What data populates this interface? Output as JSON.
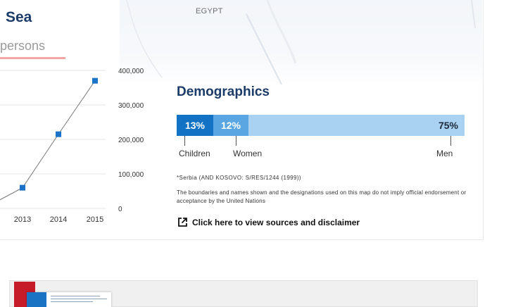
{
  "header": {
    "title": "Sea",
    "subtitle": "persons"
  },
  "map": {
    "country_label": "EGYPT"
  },
  "chart_data": {
    "type": "line",
    "x": [
      "2013",
      "2014",
      "2015"
    ],
    "series": [
      {
        "values": [
          60000,
          215000,
          370000
        ]
      }
    ],
    "y_ticks": [
      "400,000",
      "300,000",
      "200,000",
      "100,000",
      "0"
    ],
    "ylim": [
      0,
      400000
    ],
    "grid": true,
    "colors": {
      "line": "#777777",
      "marker": "#1a73c9",
      "grid": "#e4e4e4"
    }
  },
  "demographics": {
    "title": "Demographics",
    "segments": [
      {
        "name": "Children",
        "value_label": "13%",
        "fraction": 0.13,
        "color": "#1472c4"
      },
      {
        "name": "Women",
        "value_label": "12%",
        "fraction": 0.12,
        "color": "#5aa6e2"
      },
      {
        "name": "Men",
        "value_label": "75%",
        "fraction": 0.75,
        "color": "#a9d2f2"
      }
    ],
    "labels": {
      "children": "Children",
      "women": "Women",
      "men": "Men"
    },
    "footnote": "*Serbia (AND KOSOVO: S/RES/1244 (1999))",
    "disclaimer": "The boundaries and names shown and the designations used on this map do not imply official endorsement or acceptance by the United Nations",
    "link_text": "Click here to view sources and disclaimer"
  }
}
